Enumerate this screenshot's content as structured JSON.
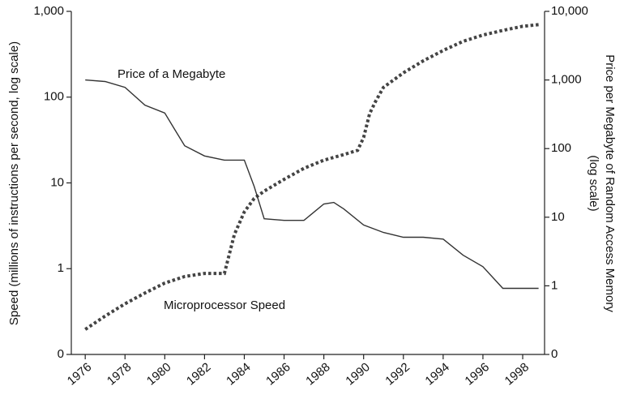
{
  "chart_data": {
    "type": "line",
    "y_label": "Speed (millions of instructions per second, log scale)",
    "y2_label": "Price per Megabyte of Random Access Memory (log scale)",
    "annotations": [
      "Price of a Megabyte",
      "Microprocessor Speed"
    ],
    "xlim": [
      1975.3,
      1999.1
    ],
    "xticks": [
      1976,
      1978,
      1980,
      1982,
      1984,
      1986,
      1988,
      1990,
      1992,
      1994,
      1996,
      1998
    ],
    "ylim": [
      0.1,
      1000
    ],
    "yticks": [
      {
        "value": 0.1,
        "label": "0"
      },
      1,
      10,
      100,
      {
        "value": 1000,
        "label": "1,000"
      }
    ],
    "y2lim": [
      0.1,
      10000
    ],
    "y2ticks": [
      {
        "value": 0.1,
        "label": "0"
      },
      1,
      10,
      100,
      {
        "value": 1000,
        "label": "1,000"
      },
      {
        "value": 10000,
        "label": "10,000"
      }
    ],
    "log_scale": true,
    "series": [
      {
        "name": "Microprocessor Speed",
        "color": "#444444",
        "axis": "y",
        "style": "dotted",
        "x": [
          1976,
          1977,
          1978,
          1979,
          1980,
          1981,
          1982,
          1983,
          1983.5,
          1984,
          1984.5,
          1985,
          1986,
          1987,
          1988,
          1989,
          1989.7,
          1990,
          1990.3,
          1990.6,
          1991,
          1992,
          1993,
          1994,
          1995,
          1996,
          1997,
          1998,
          1998.8
        ],
        "values": [
          0.196,
          0.28,
          0.39,
          0.52,
          0.68,
          0.81,
          0.88,
          0.88,
          2.5,
          4.6,
          6.6,
          8.0,
          11,
          14.8,
          18.4,
          21.4,
          24,
          33.8,
          64,
          89,
          130,
          192,
          265,
          350,
          447,
          530,
          600,
          670,
          700
        ]
      },
      {
        "name": "Price of a Megabyte",
        "color": "#333333",
        "axis": "y2",
        "style": "solid",
        "x": [
          1976,
          1977,
          1978,
          1979,
          1980,
          1980.5,
          1981,
          1982,
          1983,
          1984,
          1984.5,
          1985,
          1986,
          1987,
          1988,
          1988.5,
          1989,
          1990,
          1991,
          1992,
          1993,
          1994,
          1995,
          1996,
          1997,
          1998,
          1998.8
        ],
        "values": [
          1000,
          950,
          780,
          430,
          330,
          190,
          110,
          78,
          68,
          68,
          28,
          9.5,
          9.0,
          9.0,
          15.6,
          16.4,
          13.2,
          7.7,
          6.0,
          5.1,
          5.1,
          4.8,
          2.8,
          1.9,
          0.92,
          0.92,
          0.92
        ]
      }
    ]
  }
}
